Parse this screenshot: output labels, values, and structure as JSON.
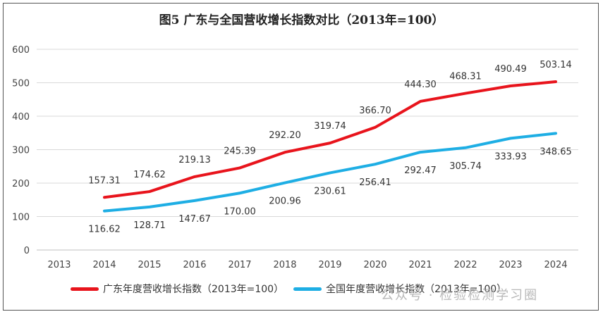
{
  "chart_data": {
    "type": "line",
    "title": "图5  广东与全国营收增长指数对比（2013年=100）",
    "categories": [
      "2013",
      "2014",
      "2015",
      "2016",
      "2017",
      "2018",
      "2019",
      "2020",
      "2021",
      "2022",
      "2023",
      "2024"
    ],
    "ylim": [
      0,
      600
    ],
    "yticks": [
      0,
      100,
      200,
      300,
      400,
      500,
      600
    ],
    "grid": true,
    "legend_position": "bottom",
    "series": [
      {
        "name": "广东年度营收增长指数（2013年=100）",
        "color": "#e8141c",
        "label_position": "above",
        "values": [
          null,
          157.31,
          174.62,
          219.13,
          245.39,
          292.2,
          319.74,
          366.7,
          444.3,
          468.31,
          490.49,
          503.14
        ]
      },
      {
        "name": "全国年度营收增长指数（2013年=100）",
        "color": "#1eaee4",
        "label_position": "below",
        "values": [
          null,
          116.62,
          128.71,
          147.67,
          170.0,
          200.96,
          230.61,
          256.41,
          292.47,
          305.74,
          333.93,
          348.65
        ]
      }
    ]
  },
  "watermark": "公众号 · 检验检测学习圈"
}
